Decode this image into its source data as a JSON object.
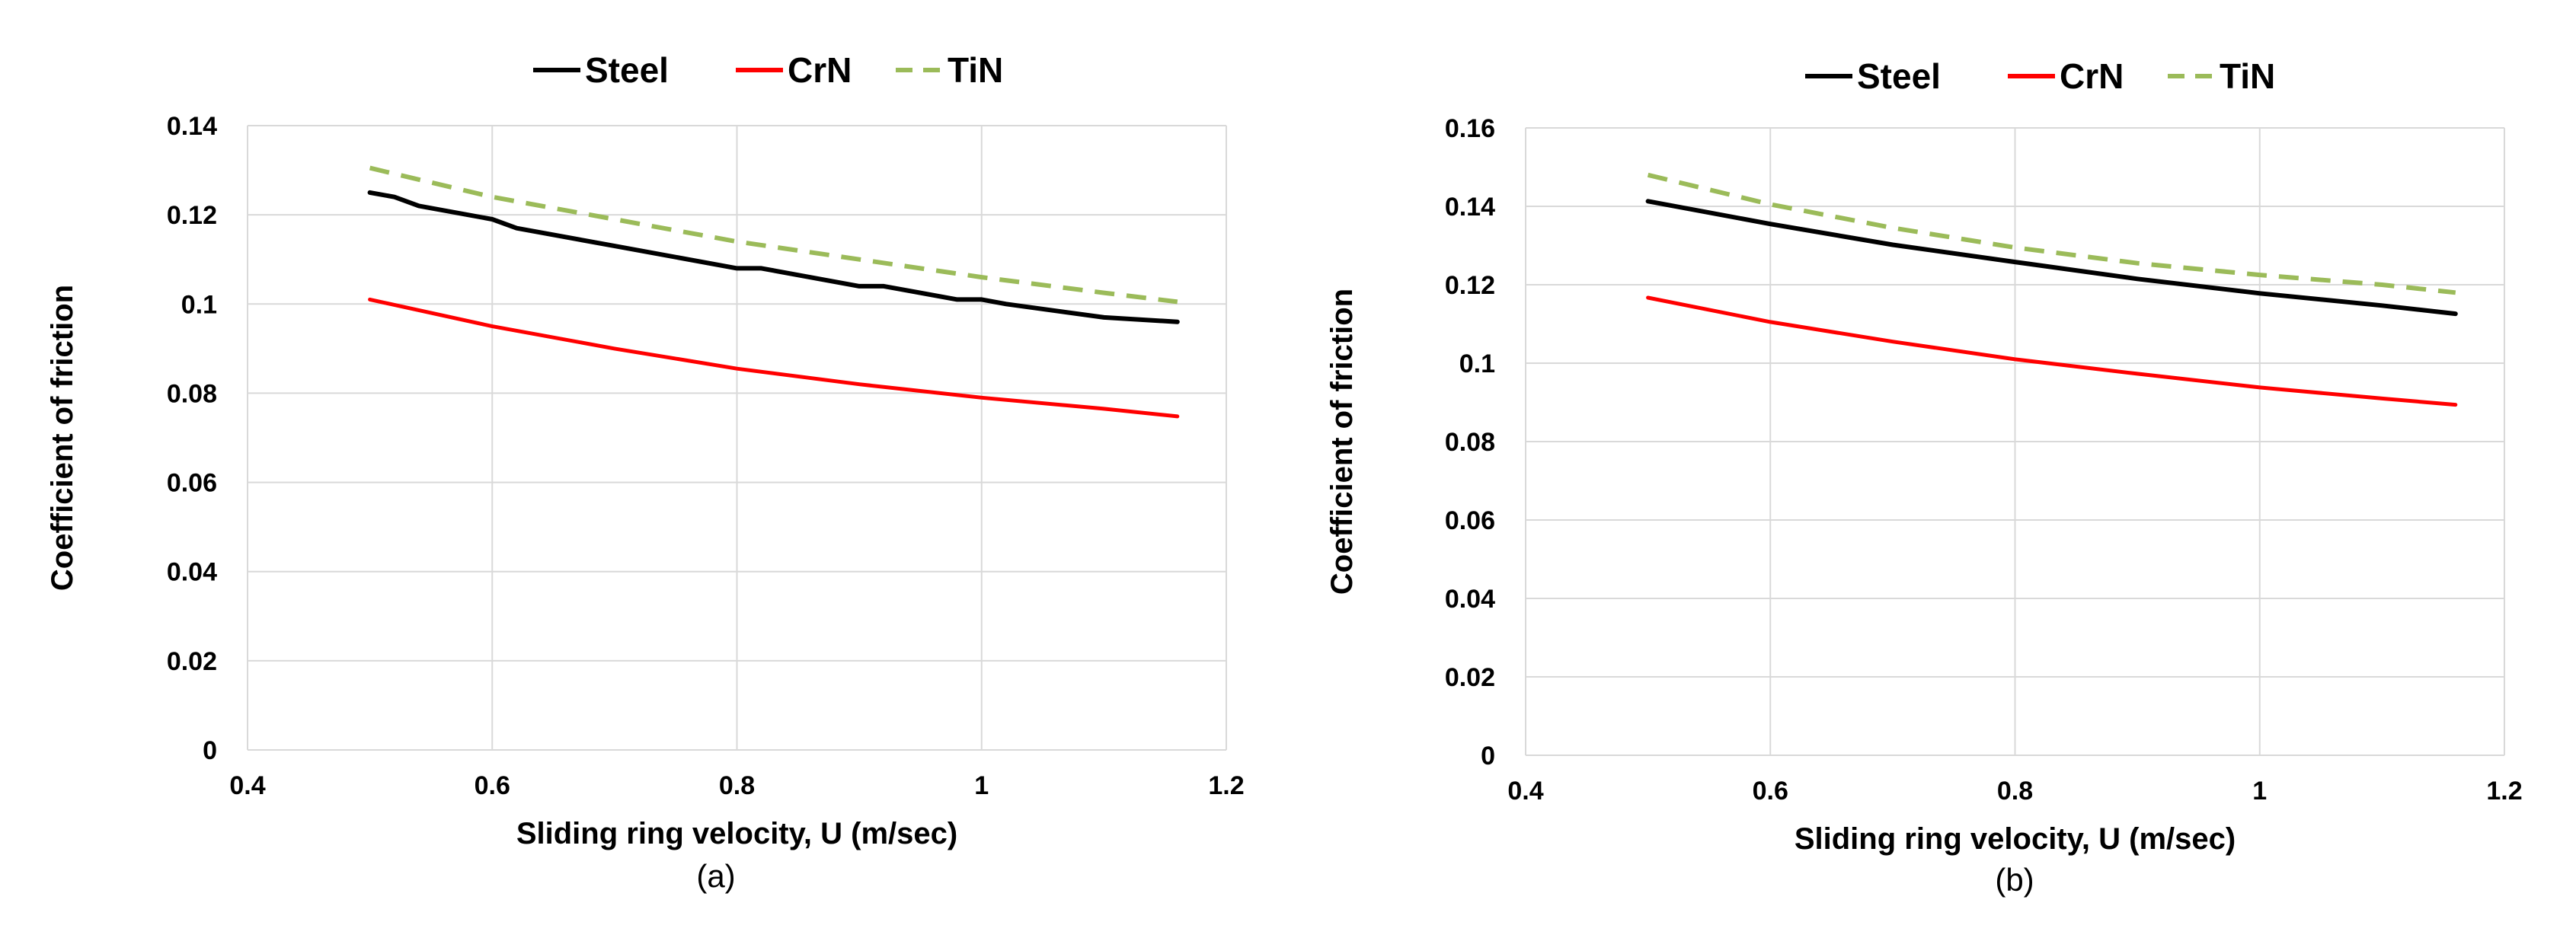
{
  "figure": {
    "colors": {
      "Steel": "#000000",
      "CrN": "#ff0000",
      "TiN": "#9bbb59",
      "grid": "#d9d9d9"
    }
  },
  "chart_data": [
    {
      "type": "line",
      "caption": "(a)",
      "xlabel": "Sliding ring velocity, U (m/sec)",
      "ylabel": "Coefficient of friction",
      "xlim": [
        0.4,
        1.2
      ],
      "ylim": [
        0,
        0.14
      ],
      "xticks": [
        "0.4",
        "0.6",
        "0.8",
        "1",
        "1.2"
      ],
      "yticks": [
        "0",
        "0.02",
        "0.04",
        "0.06",
        "0.08",
        "0.1",
        "0.12",
        "0.14"
      ],
      "grid": true,
      "legend_position": "top-center",
      "series": [
        {
          "name": "Steel",
          "style": "solid",
          "x": [
            0.5,
            0.52,
            0.54,
            0.6,
            0.62,
            0.7,
            0.8,
            0.82,
            0.9,
            0.92,
            0.98,
            1.0,
            1.02,
            1.1,
            1.16
          ],
          "y": [
            0.125,
            0.124,
            0.122,
            0.119,
            0.117,
            0.113,
            0.108,
            0.108,
            0.104,
            0.104,
            0.101,
            0.101,
            0.1,
            0.097,
            0.096
          ]
        },
        {
          "name": "CrN",
          "style": "solid",
          "x": [
            0.5,
            0.6,
            0.7,
            0.8,
            0.9,
            1.0,
            1.1,
            1.16
          ],
          "y": [
            0.101,
            0.095,
            0.09,
            0.0855,
            0.082,
            0.079,
            0.0765,
            0.0748
          ]
        },
        {
          "name": "TiN",
          "style": "dashed",
          "x": [
            0.5,
            0.6,
            0.7,
            0.8,
            0.9,
            1.0,
            1.1,
            1.16
          ],
          "y": [
            0.1305,
            0.124,
            0.119,
            0.114,
            0.11,
            0.106,
            0.1025,
            0.1005
          ]
        }
      ]
    },
    {
      "type": "line",
      "caption": "(b)",
      "xlabel": "Sliding ring velocity, U (m/sec)",
      "ylabel": "Coefficient of friction",
      "xlim": [
        0.4,
        1.2
      ],
      "ylim": [
        0,
        0.16
      ],
      "xticks": [
        "0.4",
        "0.6",
        "0.8",
        "1",
        "1.2"
      ],
      "yticks": [
        "0",
        "0.02",
        "0.04",
        "0.06",
        "0.08",
        "0.1",
        "0.12",
        "0.14",
        "0.16"
      ],
      "grid": true,
      "legend_position": "top-center",
      "series": [
        {
          "name": "Steel",
          "style": "solid",
          "x": [
            0.5,
            0.6,
            0.7,
            0.8,
            0.9,
            1.0,
            1.1,
            1.16
          ],
          "y": [
            0.1413,
            0.1355,
            0.1302,
            0.1258,
            0.1215,
            0.1178,
            0.1147,
            0.1126
          ]
        },
        {
          "name": "CrN",
          "style": "solid",
          "x": [
            0.5,
            0.6,
            0.7,
            0.8,
            0.9,
            1.0,
            1.1,
            1.16
          ],
          "y": [
            0.1167,
            0.1105,
            0.1055,
            0.101,
            0.0973,
            0.0938,
            0.091,
            0.0894
          ]
        },
        {
          "name": "TiN",
          "style": "dashed",
          "x": [
            0.5,
            0.6,
            0.7,
            0.8,
            0.9,
            1.0,
            1.1,
            1.16
          ],
          "y": [
            0.148,
            0.1405,
            0.1345,
            0.1295,
            0.1255,
            0.1225,
            0.12,
            0.118
          ]
        }
      ]
    }
  ]
}
